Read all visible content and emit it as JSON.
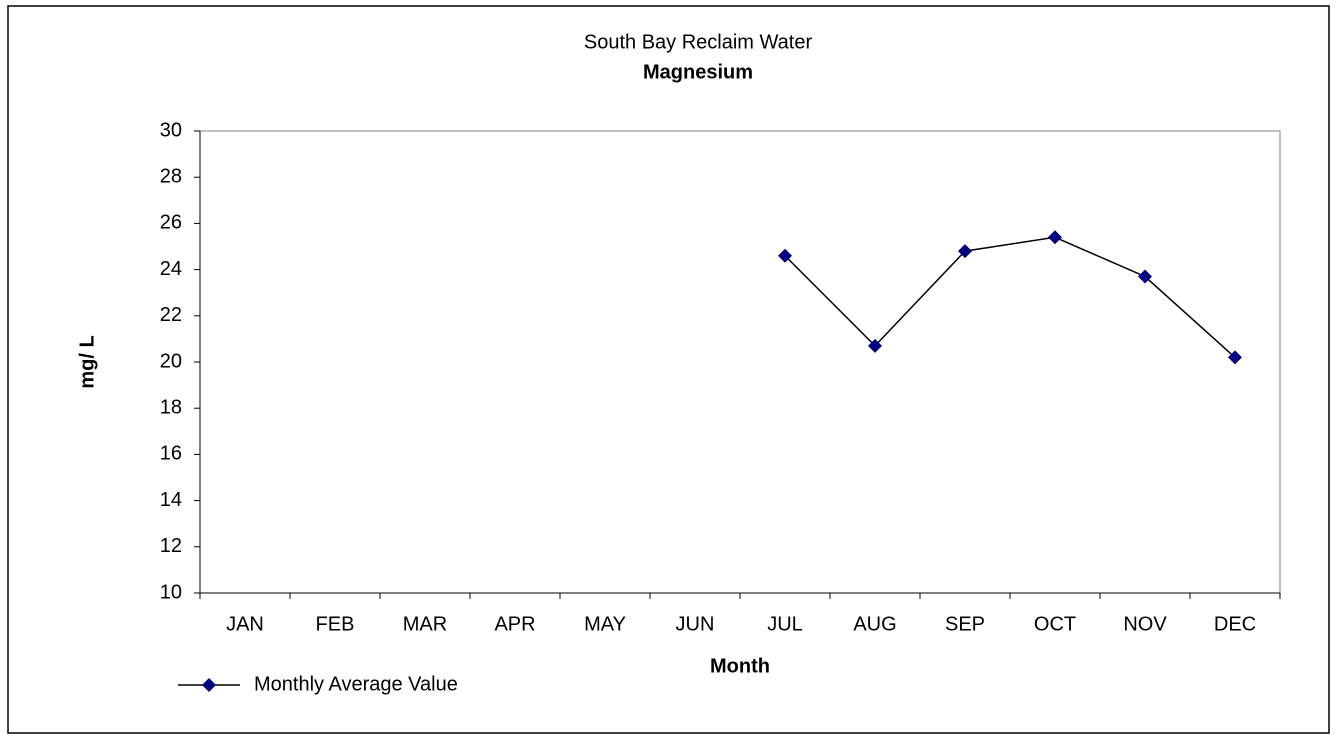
{
  "chart_data": {
    "type": "line",
    "title": "South Bay Reclaim Water",
    "subtitle": "Magnesium",
    "x_label": "Month",
    "y_label": "mg/ L",
    "categories": [
      "JAN",
      "FEB",
      "MAR",
      "APR",
      "MAY",
      "JUN",
      "JUL",
      "AUG",
      "SEP",
      "OCT",
      "NOV",
      "DEC"
    ],
    "series": [
      {
        "name": "Monthly Average Value",
        "color": "#000080",
        "line_color": "#000000",
        "values": [
          null,
          null,
          null,
          null,
          null,
          null,
          24.6,
          20.7,
          24.8,
          25.4,
          23.7,
          20.2
        ]
      }
    ],
    "ylim": [
      10,
      30
    ],
    "yticks": [
      10,
      12,
      14,
      16,
      18,
      20,
      22,
      24,
      26,
      28,
      30
    ],
    "grid": false,
    "legend": "bottom-left"
  }
}
